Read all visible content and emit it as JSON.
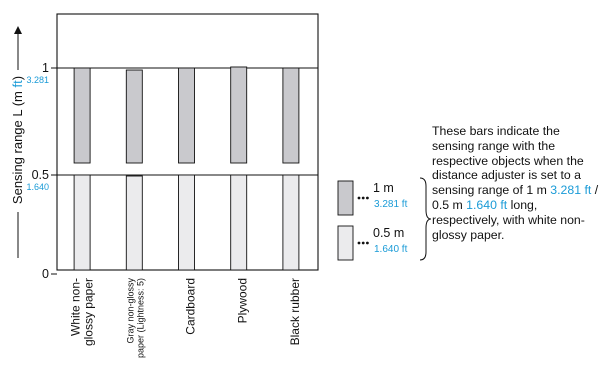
{
  "chart_data": {
    "type": "bar",
    "ylabel_main": "Sensing range L (m ",
    "ylabel_ft": "ft",
    "ylabel_close": ")",
    "y_ticks": [
      {
        "value": 0,
        "label": "0",
        "ft": ""
      },
      {
        "value": 0.5,
        "label": "0.5",
        "ft": "1.640"
      },
      {
        "value": 1,
        "label": "1",
        "ft": "3.281"
      }
    ],
    "ylim": [
      0,
      1.2
    ],
    "categories": [
      "White non-glossy paper",
      "Gray non-glossy paper (Lightness: 5)",
      "Cardboard",
      "Plywood",
      "Black rubber"
    ],
    "category_lines": [
      [
        "White non-",
        "glossy paper"
      ],
      [
        "Gray non-glossy",
        "paper (Lightness: 5)"
      ],
      [
        "Cardboard"
      ],
      [
        "Plywood"
      ],
      [
        "Black rubber"
      ]
    ],
    "series": [
      {
        "setting": "1 m",
        "values": [
          1.0,
          0.99,
          1.0,
          1.005,
          1.0
        ]
      },
      {
        "setting": "0.5 m",
        "values": [
          0.5,
          0.495,
          0.5,
          0.5,
          0.5
        ]
      }
    ],
    "colors": {
      "dark_bar": "#c9c9cd",
      "light_bar": "#ebebed",
      "accent": "#1a9bd7",
      "ink": "#111111"
    }
  },
  "legend": [
    {
      "m": "1 m",
      "ft": "3.281 ft"
    },
    {
      "m": "0.5 m",
      "ft": "1.640 ft"
    }
  ],
  "description": {
    "text1": "These bars indicate the sensing range with the respective objects when the distance adjuster is set to a sensing range of 1 m ",
    "ft1": "3.281 ft",
    "text2": " / 0.5 m ",
    "ft2": "1.640 ft",
    "text3": " long, respectively, with white non-glossy paper."
  }
}
